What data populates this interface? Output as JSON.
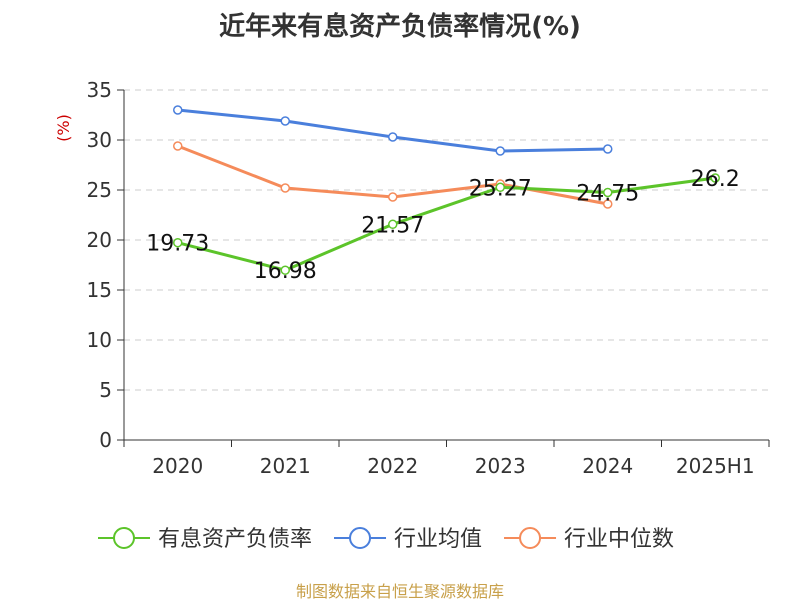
{
  "title": "近年来有息资产负债率情况(%)",
  "source": "制图数据来自恒生聚源数据库",
  "chart_data": {
    "type": "line",
    "title": "近年来有息资产负债率情况(%)",
    "ylabel": "(%)",
    "xlabel": "",
    "categories": [
      "2020",
      "2021",
      "2022",
      "2023",
      "2024",
      "2025H1"
    ],
    "ylim": [
      0,
      35
    ],
    "yticks": [
      0,
      5,
      10,
      15,
      20,
      25,
      30,
      35
    ],
    "grid": true,
    "legend_position": "bottom",
    "series": [
      {
        "name": "有息资产负债率",
        "color": "#5cc42a",
        "values": [
          19.73,
          16.98,
          21.57,
          25.27,
          24.75,
          26.2
        ],
        "labels": [
          "19.73",
          "16.98",
          "21.57",
          "25.27",
          "24.75",
          "26.2"
        ]
      },
      {
        "name": "行业均值",
        "color": "#4a7fdc",
        "values": [
          33.0,
          31.9,
          30.3,
          28.9,
          29.1,
          null
        ]
      },
      {
        "name": "行业中位数",
        "color": "#f58b5a",
        "values": [
          29.4,
          25.2,
          24.3,
          25.6,
          23.6,
          null
        ]
      }
    ]
  }
}
